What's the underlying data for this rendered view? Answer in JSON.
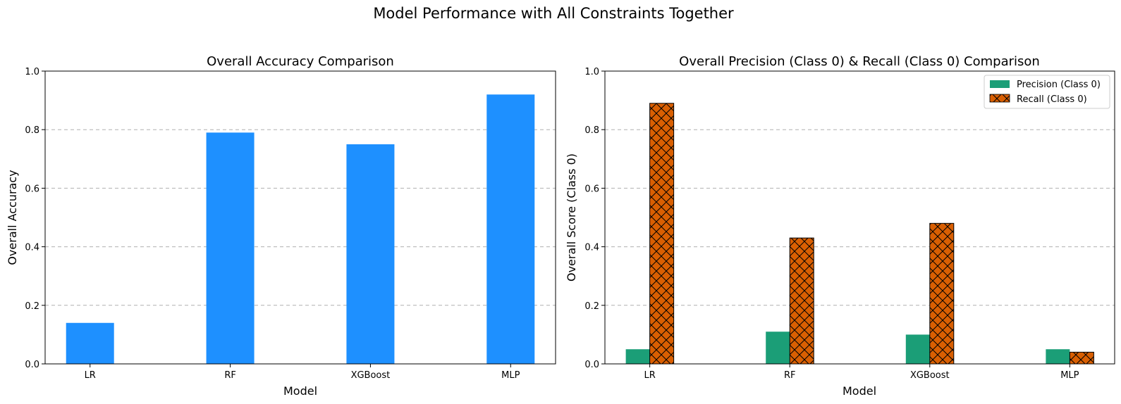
{
  "figure": {
    "suptitle": "Model Performance with All Constraints Together"
  },
  "chart_data": [
    {
      "type": "bar",
      "title": "Overall Accuracy Comparison",
      "xlabel": "Model",
      "ylabel": "Overall Accuracy",
      "categories": [
        "LR",
        "RF",
        "XGBoost",
        "MLP"
      ],
      "values": [
        0.14,
        0.79,
        0.75,
        0.92
      ],
      "color": "#1E90FF",
      "ylim": [
        0,
        1.0
      ],
      "yticks": [
        "0.0",
        "0.2",
        "0.4",
        "0.6",
        "0.8",
        "1.0"
      ],
      "grid": "y-dashed",
      "legend": "none"
    },
    {
      "type": "bar",
      "title": "Overall Precision (Class 0) & Recall (Class 0) Comparison",
      "xlabel": "Model",
      "ylabel": "Overall Score (Class 0)",
      "categories": [
        "LR",
        "RF",
        "XGBoost",
        "MLP"
      ],
      "series": [
        {
          "name": "Precision (Class 0)",
          "values": [
            0.05,
            0.11,
            0.1,
            0.05
          ],
          "color": "#1B9E77",
          "hatch": "none"
        },
        {
          "name": "Recall (Class 0)",
          "values": [
            0.89,
            0.43,
            0.48,
            0.04
          ],
          "color": "#D95F02",
          "hatch": "cross-hatch"
        }
      ],
      "ylim": [
        0,
        1.0
      ],
      "yticks": [
        "0.0",
        "0.2",
        "0.4",
        "0.6",
        "0.8",
        "1.0"
      ],
      "grid": "y-dashed",
      "legend": "top-right"
    }
  ]
}
